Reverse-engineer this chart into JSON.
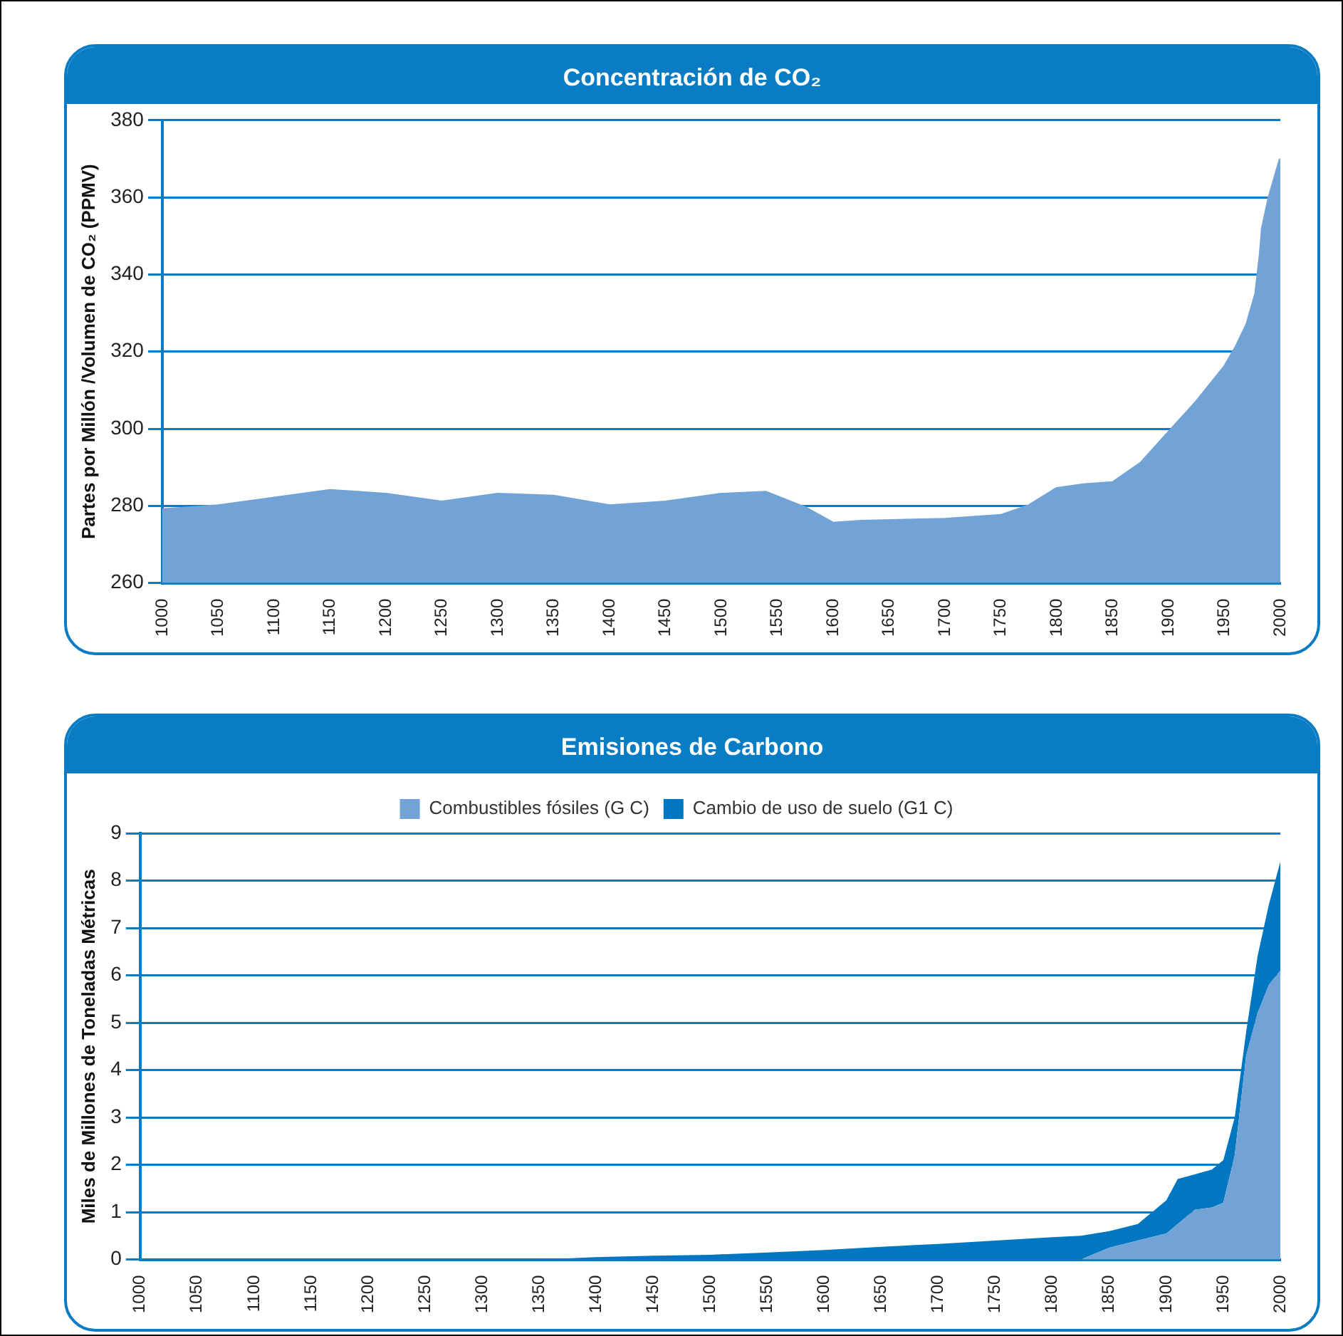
{
  "chart_data": [
    {
      "type": "area",
      "title": "Concentración de CO₂",
      "ylabel": "Partes por Millón /Volumen de CO₂ (PPMV)",
      "x": [
        1000,
        1050,
        1100,
        1150,
        1200,
        1250,
        1300,
        1350,
        1400,
        1450,
        1500,
        1540,
        1575,
        1600,
        1625,
        1700,
        1750,
        1775,
        1800,
        1825,
        1850,
        1875,
        1900,
        1925,
        1950,
        1960,
        1970,
        1978,
        1982,
        1984,
        1990,
        2000
      ],
      "series": [
        {
          "color": "#72a3d7",
          "values": [
            279,
            280,
            282,
            284,
            283,
            281,
            283,
            282.5,
            280,
            281,
            283,
            283.5,
            279.5,
            275.5,
            276,
            276.5,
            277.5,
            280,
            284.5,
            285.5,
            286,
            291,
            299,
            307,
            316,
            321,
            327,
            335,
            345,
            352,
            360,
            370
          ]
        }
      ],
      "xlim": [
        1000,
        2000
      ],
      "xticks": [
        1000,
        1050,
        1100,
        1150,
        1200,
        1250,
        1300,
        1350,
        1400,
        1450,
        1500,
        1550,
        1600,
        1650,
        1700,
        1750,
        1800,
        1850,
        1900,
        1950,
        2000
      ],
      "ylim": [
        260,
        380
      ],
      "yticks": [
        260,
        280,
        300,
        320,
        340,
        360,
        380
      ],
      "grid": "y"
    },
    {
      "type": "area",
      "title": "Emisiones de Carbono",
      "ylabel": "Miles de Millones de Toneladas Métricas",
      "stacked": true,
      "legend": "top",
      "x": [
        1000,
        1350,
        1400,
        1450,
        1500,
        1550,
        1600,
        1650,
        1700,
        1750,
        1800,
        1825,
        1850,
        1875,
        1900,
        1910,
        1925,
        1940,
        1950,
        1960,
        1970,
        1980,
        1990,
        2000
      ],
      "series": [
        {
          "name": "Combustibles fósiles (G C)",
          "color": "#72a3d7",
          "values": [
            0,
            0,
            0,
            0,
            0,
            0,
            0,
            0,
            0,
            0,
            0,
            0,
            0.25,
            0.4,
            0.55,
            0.75,
            1.05,
            1.1,
            1.2,
            2.2,
            4.3,
            5.2,
            5.8,
            6.1
          ]
        },
        {
          "name": "Cambio de uso de suelo (G1 C)",
          "color": "#0077c0",
          "values": [
            0,
            0,
            0.05,
            0.08,
            0.1,
            0.15,
            0.2,
            0.27,
            0.33,
            0.4,
            0.47,
            0.5,
            0.35,
            0.35,
            0.7,
            0.95,
            0.75,
            0.8,
            0.9,
            0.8,
            0.5,
            1.2,
            1.7,
            2.3
          ]
        }
      ],
      "xlim": [
        1000,
        2000
      ],
      "xticks": [
        1000,
        1050,
        1100,
        1150,
        1200,
        1250,
        1300,
        1350,
        1400,
        1450,
        1500,
        1550,
        1600,
        1650,
        1700,
        1750,
        1800,
        1850,
        1900,
        1950,
        2000
      ],
      "ylim": [
        0,
        9
      ],
      "yticks": [
        0,
        1,
        2,
        3,
        4,
        5,
        6,
        7,
        8,
        9
      ],
      "grid": "y"
    }
  ]
}
